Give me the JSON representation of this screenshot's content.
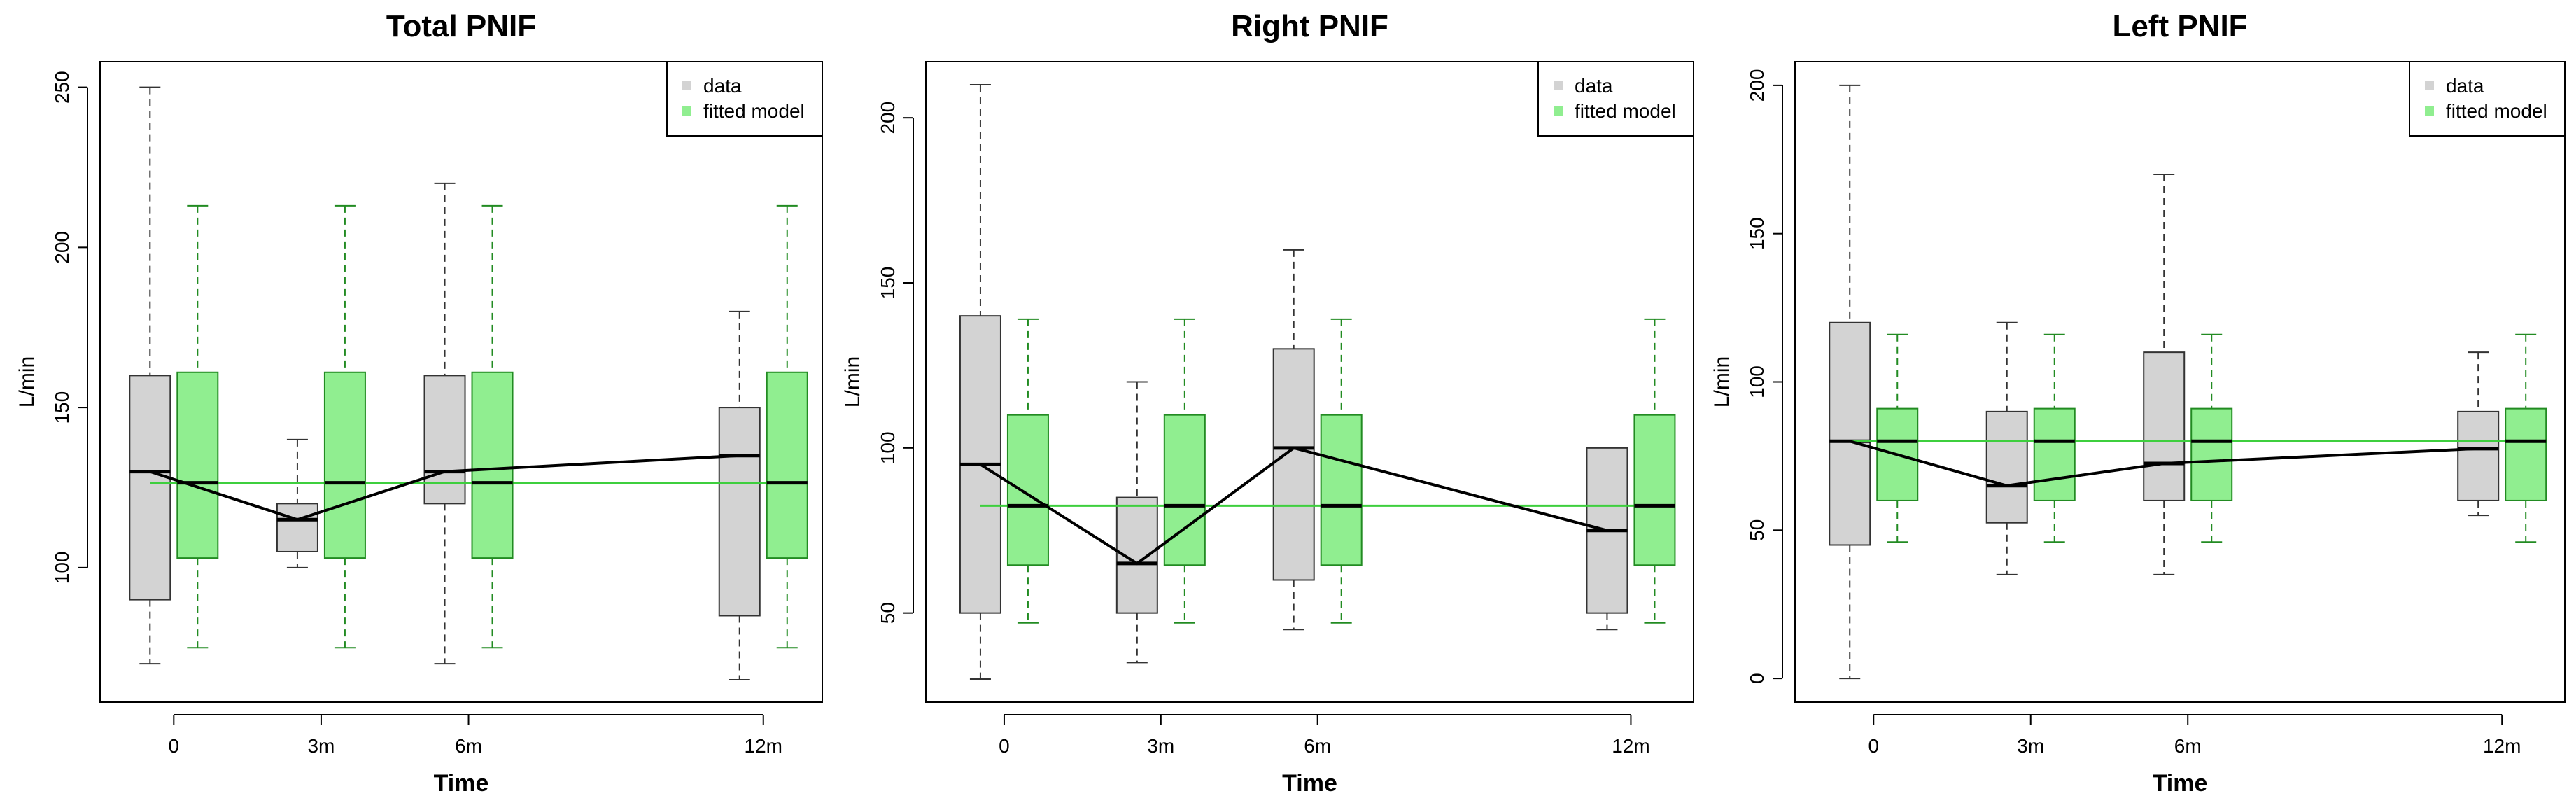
{
  "colors": {
    "data_fill": "#d3d3d3",
    "data_stroke": "#333333",
    "model_fill": "#90ee90",
    "model_stroke": "#228b22",
    "model_line": "#3ecf3e",
    "median_line": "#000000"
  },
  "chart_data": [
    {
      "type": "boxplot",
      "title": "Total PNIF",
      "xlabel": "Time",
      "ylabel": "L/min",
      "categories": [
        "0",
        "3m",
        "6m",
        "12m"
      ],
      "x_positions": [
        0,
        3,
        6,
        12
      ],
      "ylim": [
        58,
        258
      ],
      "yticks": [
        100,
        150,
        200,
        250
      ],
      "legend": {
        "position": "top-right",
        "entries": [
          "data",
          "fitted model"
        ]
      },
      "series": [
        {
          "name": "data",
          "boxes": [
            {
              "min": 70,
              "q1": 90,
              "median": 130,
              "q3": 160,
              "max": 250
            },
            {
              "min": 100,
              "q1": 105,
              "median": 115,
              "q3": 120,
              "max": 140
            },
            {
              "min": 70,
              "q1": 120,
              "median": 130,
              "q3": 160,
              "max": 220
            },
            {
              "min": 65,
              "q1": 85,
              "median": 135,
              "q3": 150,
              "max": 180
            }
          ]
        },
        {
          "name": "fitted model",
          "boxes": [
            {
              "min": 75,
              "q1": 103,
              "median": 126.5,
              "q3": 161,
              "max": 213
            },
            {
              "min": 75,
              "q1": 103,
              "median": 126.5,
              "q3": 161,
              "max": 213
            },
            {
              "min": 75,
              "q1": 103,
              "median": 126.5,
              "q3": 161,
              "max": 213
            },
            {
              "min": 75,
              "q1": 103,
              "median": 126.5,
              "q3": 161,
              "max": 213
            }
          ]
        }
      ]
    },
    {
      "type": "boxplot",
      "title": "Right PNIF",
      "xlabel": "Time",
      "ylabel": "L/min",
      "categories": [
        "0",
        "3m",
        "6m",
        "12m"
      ],
      "x_positions": [
        0,
        3,
        6,
        12
      ],
      "ylim": [
        23,
        217
      ],
      "yticks": [
        50,
        100,
        150,
        200
      ],
      "legend": {
        "position": "top-right",
        "entries": [
          "data",
          "fitted model"
        ]
      },
      "series": [
        {
          "name": "data",
          "boxes": [
            {
              "min": 30,
              "q1": 50,
              "median": 95,
              "q3": 140,
              "max": 210
            },
            {
              "min": 35,
              "q1": 50,
              "median": 65,
              "q3": 85,
              "max": 120
            },
            {
              "min": 45,
              "q1": 60,
              "median": 100,
              "q3": 130,
              "max": 160
            },
            {
              "min": 45,
              "q1": 50,
              "median": 75,
              "q3": 100,
              "max": 100
            }
          ]
        },
        {
          "name": "fitted model",
          "boxes": [
            {
              "min": 47,
              "q1": 64.5,
              "median": 82.5,
              "q3": 110,
              "max": 139
            },
            {
              "min": 47,
              "q1": 64.5,
              "median": 82.5,
              "q3": 110,
              "max": 139
            },
            {
              "min": 47,
              "q1": 64.5,
              "median": 82.5,
              "q3": 110,
              "max": 139
            },
            {
              "min": 47,
              "q1": 64.5,
              "median": 82.5,
              "q3": 110,
              "max": 139
            }
          ]
        }
      ]
    },
    {
      "type": "boxplot",
      "title": "Left PNIF",
      "xlabel": "Time",
      "ylabel": "L/min",
      "categories": [
        "0",
        "3m",
        "6m",
        "12m"
      ],
      "x_positions": [
        0,
        3,
        6,
        12
      ],
      "ylim": [
        -8,
        208
      ],
      "yticks": [
        0,
        50,
        100,
        150,
        200
      ],
      "legend": {
        "position": "top-right",
        "entries": [
          "data",
          "fitted model"
        ]
      },
      "series": [
        {
          "name": "data",
          "boxes": [
            {
              "min": 0,
              "q1": 45,
              "median": 80,
              "q3": 120,
              "max": 200
            },
            {
              "min": 35,
              "q1": 52.5,
              "median": 65,
              "q3": 90,
              "max": 120
            },
            {
              "min": 35,
              "q1": 60,
              "median": 72.5,
              "q3": 110,
              "max": 170
            },
            {
              "min": 55,
              "q1": 60,
              "median": 77.5,
              "q3": 90,
              "max": 110
            }
          ]
        },
        {
          "name": "fitted model",
          "boxes": [
            {
              "min": 46,
              "q1": 60,
              "median": 80,
              "q3": 91,
              "max": 116
            },
            {
              "min": 46,
              "q1": 60,
              "median": 80,
              "q3": 91,
              "max": 116
            },
            {
              "min": 46,
              "q1": 60,
              "median": 80,
              "q3": 91,
              "max": 116
            },
            {
              "min": 46,
              "q1": 60,
              "median": 80,
              "q3": 91,
              "max": 116
            }
          ]
        }
      ]
    }
  ]
}
